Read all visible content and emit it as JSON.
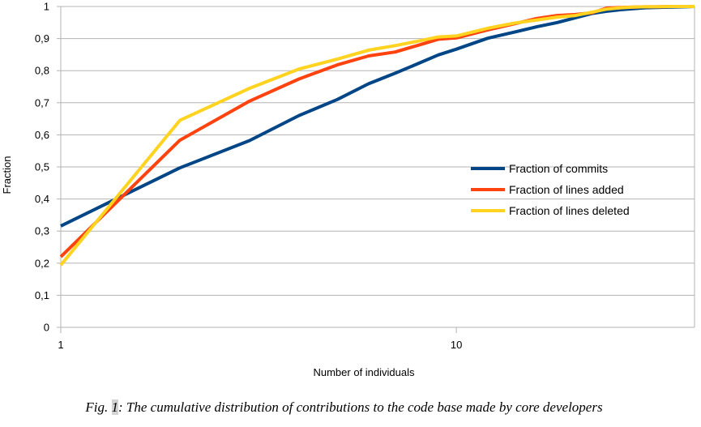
{
  "chart_data": {
    "type": "line",
    "xlabel": "Number of individuals",
    "ylabel": "Fraction",
    "x_scale": "log",
    "xlim": [
      1,
      40
    ],
    "ylim": [
      0,
      1
    ],
    "x_ticks": [
      1,
      10
    ],
    "x_tick_labels": [
      "1",
      "10"
    ],
    "y_ticks": [
      0,
      0.1,
      0.2,
      0.3,
      0.4,
      0.5,
      0.6,
      0.7,
      0.8,
      0.9,
      1
    ],
    "y_tick_labels": [
      "0",
      "0,1",
      "0,2",
      "0,3",
      "0,4",
      "0,5",
      "0,6",
      "0,7",
      "0,8",
      "0,9",
      "1"
    ],
    "grid": "horizontal",
    "legend_position": "right",
    "series": [
      {
        "name": "Fraction of commits",
        "color": "#004586",
        "x": [
          1,
          2,
          3,
          4,
          5,
          6,
          7,
          8,
          9,
          10,
          12,
          14,
          16,
          18,
          20,
          22,
          24,
          26,
          28,
          30,
          32,
          35,
          38,
          40
        ],
        "y": [
          0.316,
          0.497,
          0.582,
          0.66,
          0.71,
          0.759,
          0.792,
          0.822,
          0.849,
          0.867,
          0.901,
          0.92,
          0.937,
          0.95,
          0.965,
          0.978,
          0.985,
          0.99,
          0.993,
          0.996,
          0.997,
          0.998,
          0.999,
          1.0
        ]
      },
      {
        "name": "Fraction of lines added",
        "color": "#ff420e",
        "x": [
          1,
          2,
          3,
          4,
          5,
          6,
          7,
          8,
          9,
          10,
          12,
          14,
          16,
          18,
          20,
          22,
          24,
          26,
          28,
          30,
          32,
          35,
          38,
          40
        ],
        "y": [
          0.22,
          0.583,
          0.705,
          0.774,
          0.818,
          0.846,
          0.858,
          0.879,
          0.898,
          0.902,
          0.927,
          0.946,
          0.963,
          0.972,
          0.975,
          0.98,
          0.995,
          0.997,
          0.998,
          0.999,
          0.999,
          1.0,
          1.0,
          1.0
        ]
      },
      {
        "name": "Fraction of lines deleted",
        "color": "#ffd320",
        "x": [
          1,
          2,
          3,
          4,
          5,
          6,
          7,
          8,
          9,
          10,
          12,
          14,
          16,
          18,
          20,
          22,
          24,
          26,
          28,
          30,
          32,
          35,
          38,
          40
        ],
        "y": [
          0.194,
          0.645,
          0.745,
          0.805,
          0.836,
          0.864,
          0.878,
          0.892,
          0.905,
          0.908,
          0.932,
          0.948,
          0.958,
          0.967,
          0.972,
          0.982,
          0.992,
          0.996,
          0.998,
          0.999,
          0.999,
          1.0,
          1.0,
          1.0
        ]
      }
    ]
  },
  "caption": {
    "prefix": "Fig. ",
    "number": "1",
    "text": ": The cumulative distribution of contributions to the code base made by core developers"
  }
}
